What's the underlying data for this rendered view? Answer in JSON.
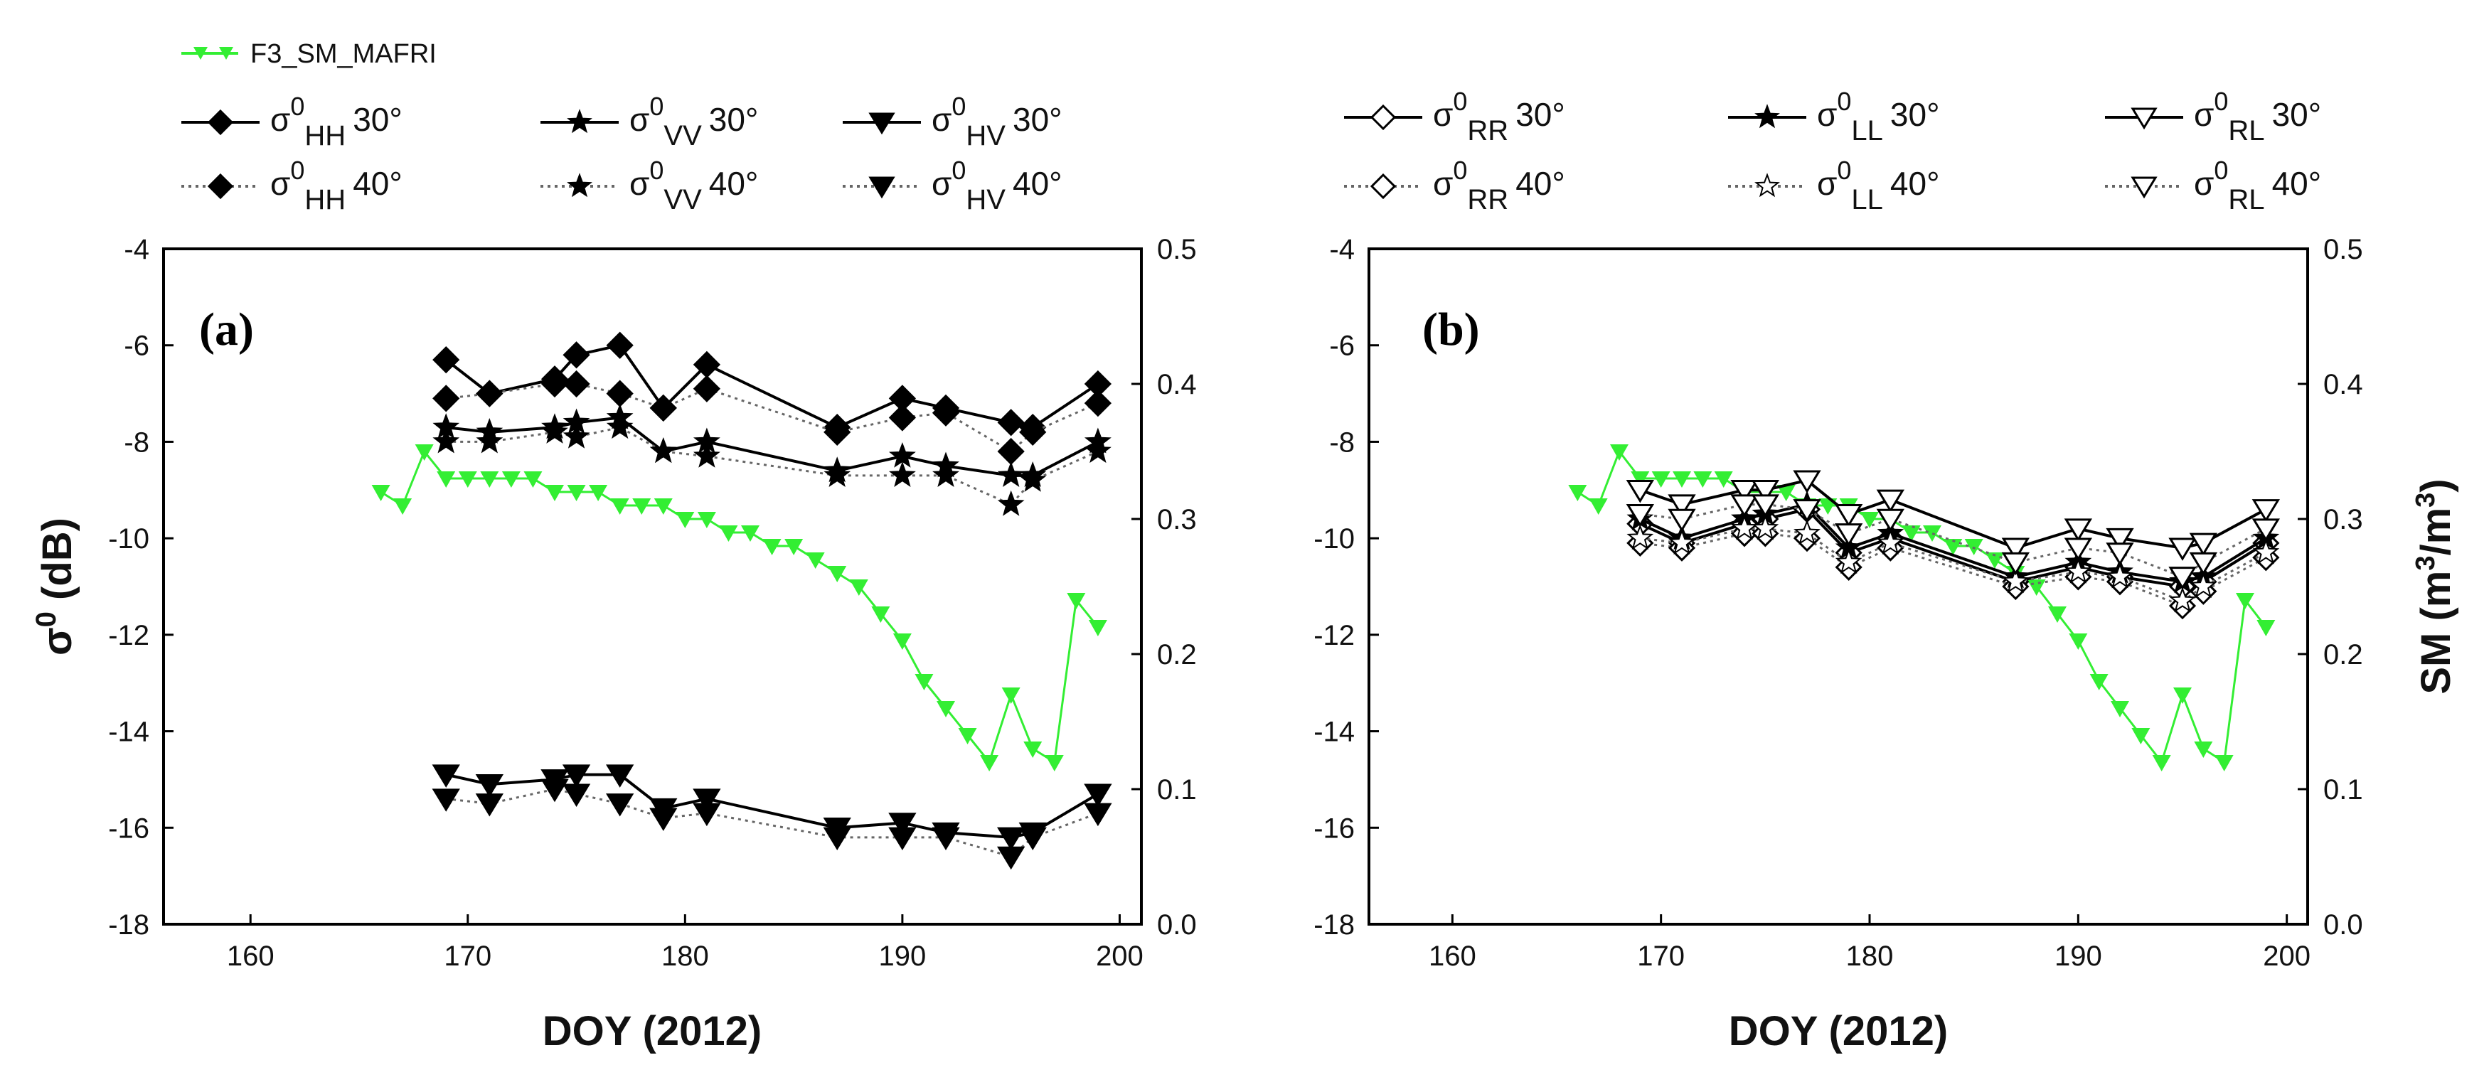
{
  "colors": {
    "sm": "#33ee33",
    "series": "#000000",
    "series40": "#666666"
  },
  "chart_data": [
    {
      "type": "line",
      "panel_label": "(a)",
      "xlabel": "DOY (2012)",
      "ylabel": "σ0 (dB)",
      "y2label": "",
      "xlim": [
        156,
        201
      ],
      "xticks": [
        160,
        170,
        180,
        190,
        200
      ],
      "ylim": [
        -18,
        -4
      ],
      "yticks": [
        -18,
        -16,
        -14,
        -12,
        -10,
        -8,
        -6,
        -4
      ],
      "y2lim": [
        0.0,
        0.5
      ],
      "y2ticks": [
        "0.0",
        "0.1",
        "0.2",
        "0.3",
        "0.4",
        "0.5"
      ],
      "sm": {
        "name": "F3_SM_MAFRI",
        "x": [
          166,
          167,
          168,
          169,
          170,
          171,
          172,
          173,
          174,
          175,
          176,
          177,
          178,
          179,
          180,
          181,
          182,
          183,
          184,
          185,
          186,
          187,
          188,
          189,
          190,
          191,
          192,
          193,
          194,
          195,
          196,
          197,
          198,
          199
        ],
        "values": [
          0.32,
          0.31,
          0.35,
          0.33,
          0.33,
          0.33,
          0.33,
          0.33,
          0.32,
          0.32,
          0.32,
          0.31,
          0.31,
          0.31,
          0.3,
          0.3,
          0.29,
          0.29,
          0.28,
          0.28,
          0.27,
          0.26,
          0.25,
          0.23,
          0.21,
          0.18,
          0.16,
          0.14,
          0.12,
          0.17,
          0.13,
          0.12,
          0.24,
          0.22
        ]
      },
      "x": [
        169,
        171,
        174,
        175,
        177,
        179,
        181,
        187,
        190,
        192,
        195,
        196,
        199
      ],
      "series": [
        {
          "name": "HH 30°",
          "marker": "diamond",
          "style": "solid",
          "values": [
            -6.3,
            -7.0,
            -6.7,
            -6.2,
            -6.0,
            -7.3,
            -6.4,
            -7.7,
            -7.1,
            -7.3,
            -7.6,
            -7.7,
            -6.8
          ]
        },
        {
          "name": "HH 40°",
          "marker": "diamond",
          "style": "dotted",
          "values": [
            -7.1,
            -7.0,
            -6.8,
            -6.8,
            -7.0,
            -7.3,
            -6.9,
            -7.8,
            -7.5,
            -7.4,
            -8.2,
            -7.8,
            -7.2
          ]
        },
        {
          "name": "VV 30°",
          "marker": "star",
          "style": "solid",
          "values": [
            -7.7,
            -7.8,
            -7.7,
            -7.6,
            -7.5,
            -8.2,
            -8.0,
            -8.6,
            -8.3,
            -8.5,
            -8.7,
            -8.7,
            -8.0
          ]
        },
        {
          "name": "VV 40°",
          "marker": "star",
          "style": "dotted",
          "values": [
            -8.0,
            -8.0,
            -7.8,
            -7.9,
            -7.7,
            -8.2,
            -8.3,
            -8.7,
            -8.7,
            -8.7,
            -9.3,
            -8.8,
            -8.2
          ]
        },
        {
          "name": "HV 30°",
          "marker": "tri-down",
          "style": "solid",
          "values": [
            -14.9,
            -15.1,
            -15.0,
            -14.9,
            -14.9,
            -15.6,
            -15.4,
            -16.0,
            -15.9,
            -16.1,
            -16.2,
            -16.1,
            -15.3
          ]
        },
        {
          "name": "HV 40°",
          "marker": "tri-down",
          "style": "dotted",
          "values": [
            -15.4,
            -15.5,
            -15.2,
            -15.3,
            -15.5,
            -15.8,
            -15.7,
            -16.2,
            -16.2,
            -16.2,
            -16.6,
            -16.2,
            -15.7
          ]
        }
      ]
    },
    {
      "type": "line",
      "panel_label": "(b)",
      "xlabel": "DOY (2012)",
      "ylabel": "",
      "y2label": "SM (m3/m3)",
      "xlim": [
        156,
        201
      ],
      "xticks": [
        160,
        170,
        180,
        190,
        200
      ],
      "ylim": [
        -18,
        -4
      ],
      "yticks": [
        -18,
        -16,
        -14,
        -12,
        -10,
        -8,
        -6,
        -4
      ],
      "y2lim": [
        0.0,
        0.5
      ],
      "y2ticks": [
        "0.0",
        "0.1",
        "0.2",
        "0.3",
        "0.4",
        "0.5"
      ],
      "sm": {
        "name": "F3_SM_MAFRI",
        "x": [
          166,
          167,
          168,
          169,
          170,
          171,
          172,
          173,
          174,
          175,
          176,
          177,
          178,
          179,
          180,
          181,
          182,
          183,
          184,
          185,
          186,
          187,
          188,
          189,
          190,
          191,
          192,
          193,
          194,
          195,
          196,
          197,
          198,
          199
        ],
        "values": [
          0.32,
          0.31,
          0.35,
          0.33,
          0.33,
          0.33,
          0.33,
          0.33,
          0.32,
          0.32,
          0.32,
          0.31,
          0.31,
          0.31,
          0.3,
          0.3,
          0.29,
          0.29,
          0.28,
          0.28,
          0.27,
          0.26,
          0.25,
          0.23,
          0.21,
          0.18,
          0.16,
          0.14,
          0.12,
          0.17,
          0.13,
          0.12,
          0.24,
          0.22
        ]
      },
      "x": [
        169,
        171,
        174,
        175,
        177,
        179,
        181,
        187,
        190,
        192,
        195,
        196,
        199
      ],
      "series": [
        {
          "name": "RR 30°",
          "marker": "open-diamond",
          "style": "solid",
          "values": [
            -9.7,
            -10.1,
            -9.7,
            -9.6,
            -9.4,
            -10.3,
            -10.0,
            -10.9,
            -10.6,
            -10.8,
            -11.0,
            -10.9,
            -10.1
          ]
        },
        {
          "name": "RR 40°",
          "marker": "open-diamond",
          "style": "dotted",
          "values": [
            -10.1,
            -10.2,
            -9.9,
            -9.9,
            -10.0,
            -10.6,
            -10.2,
            -11.0,
            -10.8,
            -10.9,
            -11.4,
            -11.1,
            -10.4
          ]
        },
        {
          "name": "LL 30°",
          "marker": "star",
          "style": "solid",
          "values": [
            -9.6,
            -10.0,
            -9.6,
            -9.5,
            -9.3,
            -10.2,
            -9.9,
            -10.8,
            -10.5,
            -10.7,
            -10.9,
            -10.8,
            -10.0
          ]
        },
        {
          "name": "LL 40°",
          "marker": "open-star",
          "style": "dotted",
          "values": [
            -10.0,
            -10.1,
            -9.8,
            -9.8,
            -9.9,
            -10.5,
            -10.1,
            -10.9,
            -10.7,
            -10.8,
            -11.3,
            -11.0,
            -10.3
          ]
        },
        {
          "name": "RL 30°",
          "marker": "open-tri-down",
          "style": "solid",
          "values": [
            -9.0,
            -9.3,
            -9.0,
            -9.0,
            -8.8,
            -9.5,
            -9.2,
            -10.2,
            -9.8,
            -10.0,
            -10.2,
            -10.1,
            -9.4
          ]
        },
        {
          "name": "RL 40°",
          "marker": "open-tri-down",
          "style": "dotted",
          "values": [
            -9.5,
            -9.6,
            -9.3,
            -9.3,
            -9.4,
            -9.9,
            -9.6,
            -10.5,
            -10.2,
            -10.3,
            -10.8,
            -10.5,
            -9.8
          ]
        }
      ]
    }
  ],
  "legend_a": {
    "green": "F3_SM_MAFRI",
    "items": [
      {
        "sym": "σ",
        "sup": "0",
        "sub": "HH",
        "ang": "30°"
      },
      {
        "sym": "σ",
        "sup": "0",
        "sub": "VV",
        "ang": "30°"
      },
      {
        "sym": "σ",
        "sup": "0",
        "sub": "HV",
        "ang": "30°"
      },
      {
        "sym": "σ",
        "sup": "0",
        "sub": "HH",
        "ang": "40°"
      },
      {
        "sym": "σ",
        "sup": "0",
        "sub": "VV",
        "ang": "40°"
      },
      {
        "sym": "σ",
        "sup": "0",
        "sub": "HV",
        "ang": "40°"
      }
    ]
  },
  "legend_b": {
    "items": [
      {
        "sym": "σ",
        "sup": "0",
        "sub": "RR",
        "ang": "30°"
      },
      {
        "sym": "σ",
        "sup": "0",
        "sub": "LL",
        "ang": "30°"
      },
      {
        "sym": "σ",
        "sup": "0",
        "sub": "RL",
        "ang": "30°"
      },
      {
        "sym": "σ",
        "sup": "0",
        "sub": "RR",
        "ang": "40°"
      },
      {
        "sym": "σ",
        "sup": "0",
        "sub": "LL",
        "ang": "40°"
      },
      {
        "sym": "σ",
        "sup": "0",
        "sub": "RL",
        "ang": "40°"
      }
    ]
  },
  "ylabel_a": {
    "sym": "σ",
    "sup": "0",
    "rest": " (dB)"
  },
  "y2label_b": {
    "pre": "SM (m",
    "sup1": "3",
    "mid": "/m",
    "sup2": "3",
    "post": ")"
  }
}
